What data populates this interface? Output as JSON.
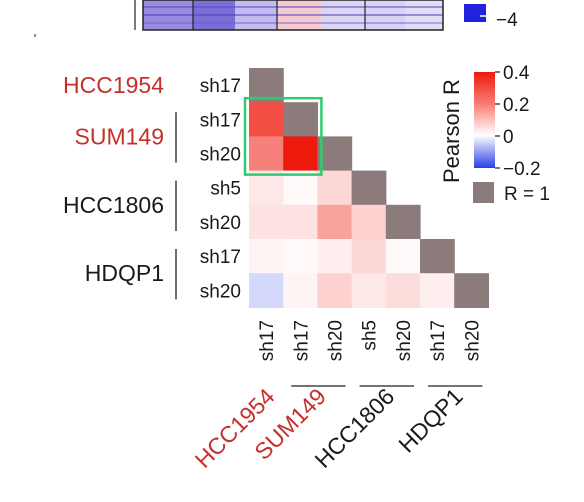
{
  "chart_data": {
    "type": "heatmap",
    "title": "",
    "samples": [
      {
        "line": "HCC1954",
        "clone": "sh17"
      },
      {
        "line": "SUM149",
        "clone": "sh17"
      },
      {
        "line": "SUM149",
        "clone": "sh20"
      },
      {
        "line": "HCC1806",
        "clone": "sh5"
      },
      {
        "line": "HCC1806",
        "clone": "sh20"
      },
      {
        "line": "HDQP1",
        "clone": "sh17"
      },
      {
        "line": "HDQP1",
        "clone": "sh20"
      }
    ],
    "row_groups": [
      {
        "name": "HCC1954",
        "highlight": true
      },
      {
        "name": "SUM149",
        "highlight": true
      },
      {
        "name": "HCC1806",
        "highlight": false
      },
      {
        "name": "HDQP1",
        "highlight": false
      }
    ],
    "column_groups": [
      {
        "name": "HCC1954",
        "highlight": true
      },
      {
        "name": "SUM149",
        "highlight": true
      },
      {
        "name": "HCC1806",
        "highlight": false
      },
      {
        "name": "HDQP1",
        "highlight": false
      }
    ],
    "matrix": [
      [
        1
      ],
      [
        0.31,
        1
      ],
      [
        0.22,
        0.4,
        1
      ],
      [
        0.04,
        0.01,
        0.07,
        1
      ],
      [
        0.05,
        0.05,
        0.16,
        0.08,
        1
      ],
      [
        0.02,
        0.01,
        0.03,
        0.07,
        0.01,
        1
      ],
      [
        -0.04,
        0.02,
        0.08,
        0.04,
        0.06,
        0.03,
        1
      ]
    ],
    "diagonal_label": "R = 1",
    "colorbar": {
      "title": "Pearson R",
      "range": [
        -0.2,
        0.4
      ],
      "ticks": [
        {
          "value": 0.4,
          "label": "0.4"
        },
        {
          "value": 0.2,
          "label": "0.2"
        },
        {
          "value": 0,
          "label": "0"
        },
        {
          "value": -0.2,
          "label": "−0.2"
        }
      ]
    },
    "highlight_box": {
      "rows": [
        1,
        2
      ],
      "cols": [
        0,
        1
      ],
      "color": "#2ecc71"
    },
    "top_panel_legend": {
      "tick_label": "−4",
      "color": "#2222dd"
    }
  },
  "colors": {
    "diagonal": "#8c7b7b",
    "positive": "#ee1a0d",
    "negative": "#2a3ee8",
    "highlight_text": "#c4302b"
  }
}
